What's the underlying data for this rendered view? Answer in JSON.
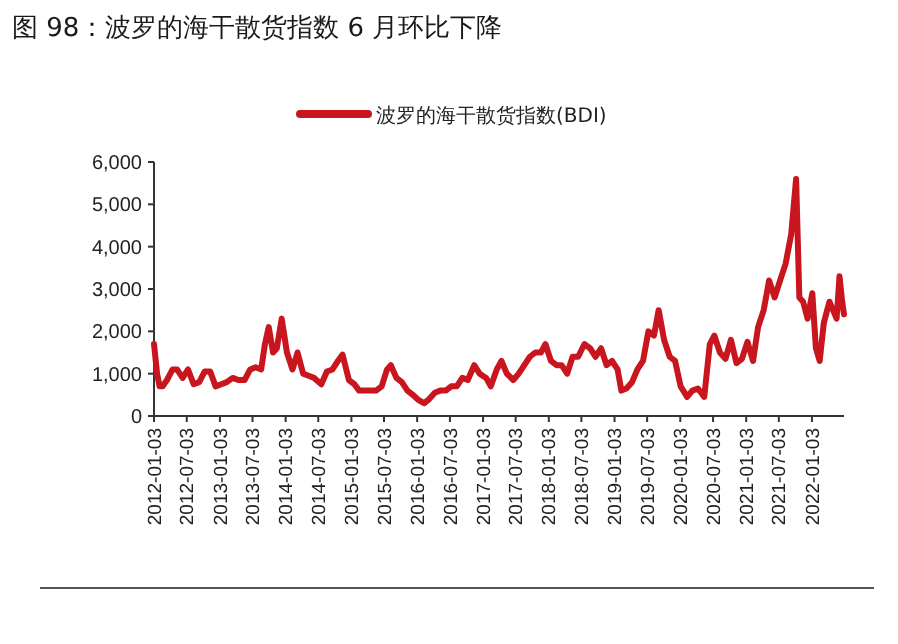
{
  "chart_data": {
    "type": "line",
    "title": "图 98：波罗的海干散货指数 6 月环比下降",
    "legend": "top",
    "grid": false,
    "x": [
      "2012-01-03",
      "2012-01-20",
      "2012-02-03",
      "2012-02-20",
      "2012-03-15",
      "2012-04-15",
      "2012-05-10",
      "2012-06-10",
      "2012-07-10",
      "2012-08-10",
      "2012-09-10",
      "2012-10-10",
      "2012-11-10",
      "2012-12-10",
      "2013-01-10",
      "2013-02-10",
      "2013-03-15",
      "2013-04-15",
      "2013-05-20",
      "2013-06-20",
      "2013-07-20",
      "2013-08-20",
      "2013-09-10",
      "2013-10-01",
      "2013-10-25",
      "2013-11-15",
      "2013-12-12",
      "2014-01-10",
      "2014-02-10",
      "2014-03-10",
      "2014-04-10",
      "2014-05-10",
      "2014-06-10",
      "2014-07-20",
      "2014-08-20",
      "2014-09-20",
      "2014-10-20",
      "2014-11-15",
      "2014-12-20",
      "2015-01-20",
      "2015-02-15",
      "2015-03-20",
      "2015-04-20",
      "2015-05-20",
      "2015-06-20",
      "2015-07-20",
      "2015-08-10",
      "2015-09-10",
      "2015-10-10",
      "2015-11-10",
      "2015-12-10",
      "2016-01-10",
      "2016-02-10",
      "2016-03-10",
      "2016-04-10",
      "2016-05-10",
      "2016-06-10",
      "2016-07-10",
      "2016-08-10",
      "2016-09-10",
      "2016-10-10",
      "2016-11-15",
      "2016-12-15",
      "2017-01-20",
      "2017-02-15",
      "2017-03-20",
      "2017-04-15",
      "2017-05-15",
      "2017-06-20",
      "2017-07-20",
      "2017-08-20",
      "2017-09-20",
      "2017-10-20",
      "2017-11-20",
      "2017-12-15",
      "2018-01-15",
      "2018-02-15",
      "2018-03-15",
      "2018-04-15",
      "2018-05-15",
      "2018-06-15",
      "2018-07-20",
      "2018-08-20",
      "2018-09-20",
      "2018-10-20",
      "2018-11-20",
      "2018-12-20",
      "2019-01-20",
      "2019-02-10",
      "2019-03-10",
      "2019-04-10",
      "2019-05-10",
      "2019-06-10",
      "2019-07-10",
      "2019-08-10",
      "2019-09-05",
      "2019-10-05",
      "2019-11-05",
      "2019-12-05",
      "2020-01-05",
      "2020-02-10",
      "2020-03-10",
      "2020-04-10",
      "2020-05-15",
      "2020-06-15",
      "2020-07-10",
      "2020-08-10",
      "2020-09-10",
      "2020-10-10",
      "2020-11-10",
      "2020-12-10",
      "2021-01-10",
      "2021-02-10",
      "2021-03-10",
      "2021-04-10",
      "2021-05-10",
      "2021-06-10",
      "2021-07-10",
      "2021-08-10",
      "2021-09-10",
      "2021-10-07",
      "2021-10-25",
      "2021-11-15",
      "2021-12-10",
      "2022-01-05",
      "2022-01-25",
      "2022-02-15",
      "2022-03-10",
      "2022-04-10",
      "2022-05-20",
      "2022-06-05",
      "2022-06-20",
      "2022-06-30"
    ],
    "series": [
      {
        "name": "波罗的海干散货指数(BDI)",
        "color": "#c8151e",
        "values": [
          1700,
          1000,
          700,
          700,
          850,
          1100,
          1100,
          900,
          1100,
          750,
          800,
          1050,
          1050,
          700,
          750,
          800,
          900,
          850,
          850,
          1100,
          1150,
          1100,
          1700,
          2100,
          1500,
          1600,
          2300,
          1500,
          1100,
          1500,
          1000,
          950,
          900,
          750,
          1050,
          1100,
          1300,
          1450,
          850,
          750,
          600,
          600,
          600,
          600,
          700,
          1100,
          1200,
          900,
          800,
          600,
          500,
          380,
          300,
          400,
          550,
          600,
          600,
          700,
          700,
          900,
          850,
          1200,
          1000,
          900,
          700,
          1100,
          1300,
          1000,
          850,
          1000,
          1200,
          1400,
          1500,
          1500,
          1700,
          1300,
          1200,
          1200,
          1000,
          1400,
          1400,
          1700,
          1600,
          1400,
          1600,
          1200,
          1300,
          1100,
          600,
          650,
          800,
          1100,
          1300,
          2000,
          1900,
          2500,
          1800,
          1400,
          1300,
          700,
          450,
          600,
          650,
          450,
          1700,
          1900,
          1500,
          1350,
          1800,
          1250,
          1350,
          1750,
          1300,
          2100,
          2500,
          3200,
          2800,
          3200,
          3600,
          4300,
          5600,
          2800,
          2700,
          2300,
          2900,
          1600,
          1300,
          2200,
          2700,
          2300,
          3300,
          2700,
          2400
        ]
      }
    ],
    "xlim": [
      "2012-01-03",
      "2022-06-30"
    ],
    "xticks": [
      "2012-01-03",
      "2012-07-03",
      "2013-01-03",
      "2013-07-03",
      "2014-01-03",
      "2014-07-03",
      "2015-01-03",
      "2015-07-03",
      "2016-01-03",
      "2016-07-03",
      "2017-01-03",
      "2017-07-03",
      "2018-01-03",
      "2018-07-03",
      "2019-01-03",
      "2019-07-03",
      "2020-01-03",
      "2020-07-03",
      "2021-01-03",
      "2021-07-03",
      "2022-01-03"
    ],
    "ylim": [
      0,
      6000
    ],
    "yticks": [
      {
        "value": 0,
        "label": "0"
      },
      {
        "value": 1000,
        "label": "1,000"
      },
      {
        "value": 2000,
        "label": "2,000"
      },
      {
        "value": 3000,
        "label": "3,000"
      },
      {
        "value": 4000,
        "label": "4,000"
      },
      {
        "value": 5000,
        "label": "5,000"
      },
      {
        "value": 6000,
        "label": "6,000"
      }
    ]
  }
}
